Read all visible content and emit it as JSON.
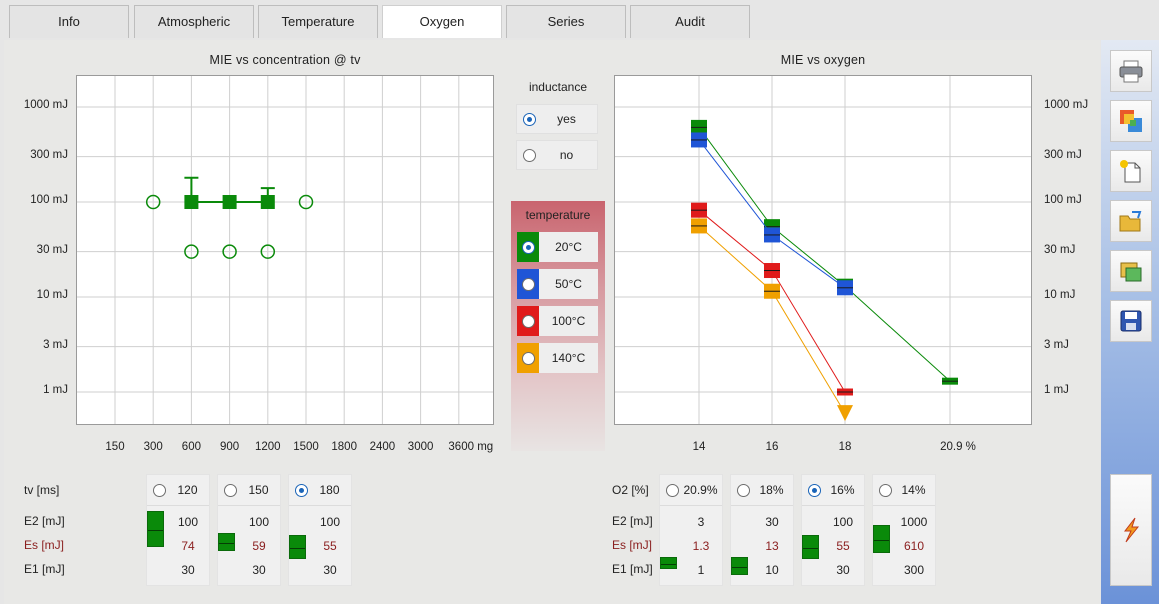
{
  "tabs": [
    "Info",
    "Atmospheric",
    "Temperature",
    "Oxygen",
    "Series",
    "Audit"
  ],
  "active_tab": "Oxygen",
  "left_chart": {
    "title": "MIE  vs  concentration  @  tv",
    "y_ticks": [
      "1000 mJ",
      "300 mJ",
      "100 mJ",
      "30 mJ",
      "10 mJ",
      "3 mJ",
      "1 mJ"
    ],
    "x_ticks": [
      "150",
      "300",
      "600",
      "900",
      "1200",
      "1500",
      "1800",
      "2400",
      "3000",
      "3600 mg"
    ]
  },
  "right_chart": {
    "title": "MIE  vs  oxygen",
    "y_ticks": [
      "1000 mJ",
      "300 mJ",
      "100 mJ",
      "30 mJ",
      "10 mJ",
      "3 mJ",
      "1 mJ"
    ],
    "x_ticks": [
      "14",
      "16",
      "18",
      "20.9  %"
    ]
  },
  "chart_data": [
    {
      "type": "scatter",
      "title": "MIE  vs  concentration  @  tv",
      "x_categories": [
        "150",
        "300",
        "600",
        "900",
        "1200",
        "1500",
        "1800",
        "2400",
        "3000",
        "3600"
      ],
      "x_unit": "mg",
      "y_scale": "log",
      "y_unit": "mJ",
      "ylim": [
        0.6,
        2000
      ],
      "series": [
        {
          "marker": "open-circle",
          "color": "#0a8a0a",
          "points": [
            [
              "300",
              100
            ],
            [
              "1500",
              100
            ],
            [
              "600",
              30
            ],
            [
              "900",
              30
            ],
            [
              "1200",
              30
            ]
          ]
        },
        {
          "marker": "filled-square",
          "color": "#0a8a0a",
          "points": [
            [
              "600",
              100,
              180
            ],
            [
              "900",
              100,
              null
            ],
            [
              "1200",
              100,
              140
            ]
          ]
        }
      ]
    },
    {
      "type": "line",
      "title": "MIE  vs  oxygen",
      "x_categories": [
        "14",
        "16",
        "18",
        "20.9"
      ],
      "x_unit": "%",
      "y_scale": "log",
      "y_unit": "mJ",
      "ylim": [
        0.6,
        2000
      ],
      "series": [
        {
          "color": "#0a8a0a",
          "points": [
            [
              "14",
              610
            ],
            [
              "16",
              55
            ],
            [
              "18",
              13
            ],
            [
              "20.9",
              1.3
            ]
          ]
        },
        {
          "color": "#1f55d6",
          "points": [
            [
              "14",
              450
            ],
            [
              "16",
              45
            ],
            [
              "18",
              12.5
            ]
          ]
        },
        {
          "color": "#e01b1b",
          "points": [
            [
              "14",
              82
            ],
            [
              "16",
              19
            ],
            [
              "18",
              1
            ]
          ]
        },
        {
          "color": "#f0a000",
          "points": [
            [
              "14",
              56
            ],
            [
              "16",
              11.5
            ],
            [
              "18",
              0.6
            ]
          ],
          "last_marker": "down-triangle"
        }
      ]
    }
  ],
  "inductance": {
    "label": "inductance",
    "options": [
      "yes",
      "no"
    ],
    "selected": "yes"
  },
  "temperature": {
    "label": "temperature",
    "options": [
      {
        "label": "20°C",
        "color": "#0a8a0a",
        "selected": true
      },
      {
        "label": "50°C",
        "color": "#1f55d6",
        "selected": false
      },
      {
        "label": "100°C",
        "color": "#e01b1b",
        "selected": false
      },
      {
        "label": "140°C",
        "color": "#f0a000",
        "selected": false
      }
    ]
  },
  "tv_table": {
    "header_label": "tv [ms]",
    "row_labels": [
      "E2 [mJ]",
      "Es [mJ]",
      "E1 [mJ]"
    ],
    "columns": [
      {
        "head": "120",
        "selected": false,
        "e2": "100",
        "es": "74",
        "e1": "30"
      },
      {
        "head": "150",
        "selected": false,
        "e2": "100",
        "es": "59",
        "e1": "30"
      },
      {
        "head": "180",
        "selected": true,
        "e2": "100",
        "es": "55",
        "e1": "30"
      }
    ]
  },
  "o2_table": {
    "header_label": "O2 [%]",
    "row_labels": [
      "E2 [mJ]",
      "Es [mJ]",
      "E1 [mJ]"
    ],
    "columns": [
      {
        "head": "20.9%",
        "selected": false,
        "e2": "3",
        "es": "1.3",
        "e1": "1"
      },
      {
        "head": "18%",
        "selected": false,
        "e2": "30",
        "es": "13",
        "e1": "10"
      },
      {
        "head": "16%",
        "selected": true,
        "e2": "100",
        "es": "55",
        "e1": "30"
      },
      {
        "head": "14%",
        "selected": false,
        "e2": "1000",
        "es": "610",
        "e1": "300"
      }
    ]
  },
  "toolbar_icons": [
    "printer-icon",
    "chart-export-icon",
    "new-document-icon",
    "open-folder-icon",
    "image-export-icon",
    "save-disk-icon",
    "ignition-icon"
  ]
}
